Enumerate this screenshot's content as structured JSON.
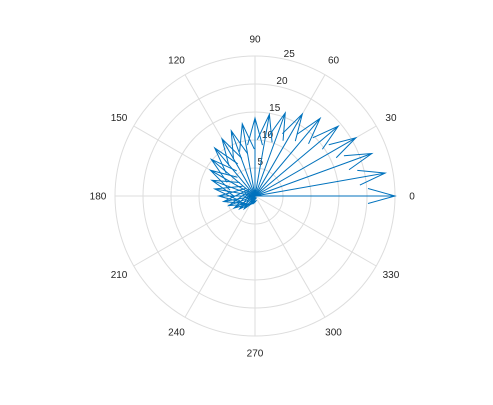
{
  "chart_data": {
    "type": "compass",
    "title": "",
    "r_lim": [
      0,
      25
    ],
    "r_ticks": [
      {
        "value": 5,
        "label": "5"
      },
      {
        "value": 10,
        "label": "10"
      },
      {
        "value": 15,
        "label": "15"
      },
      {
        "value": 20,
        "label": "20"
      },
      {
        "value": 25,
        "label": "25"
      }
    ],
    "theta_ticks": [
      {
        "deg": 0,
        "label": "0"
      },
      {
        "deg": 30,
        "label": "30"
      },
      {
        "deg": 60,
        "label": "60"
      },
      {
        "deg": 90,
        "label": "90"
      },
      {
        "deg": 120,
        "label": "120"
      },
      {
        "deg": 150,
        "label": "150"
      },
      {
        "deg": 180,
        "label": "180"
      },
      {
        "deg": 210,
        "label": "210"
      },
      {
        "deg": 240,
        "label": "240"
      },
      {
        "deg": 270,
        "label": "270"
      },
      {
        "deg": 300,
        "label": "300"
      },
      {
        "deg": 330,
        "label": "330"
      }
    ],
    "grid": true,
    "color": "#0072bd",
    "grid_color": "#dddddd",
    "vectors": [
      {
        "theta": 0,
        "r": 25.0
      },
      {
        "theta": 10,
        "r": 23.6
      },
      {
        "theta": 20,
        "r": 22.2
      },
      {
        "theta": 30,
        "r": 20.8
      },
      {
        "theta": 40,
        "r": 19.4
      },
      {
        "theta": 50,
        "r": 18.1
      },
      {
        "theta": 60,
        "r": 16.9
      },
      {
        "theta": 70,
        "r": 15.8
      },
      {
        "theta": 80,
        "r": 14.8
      },
      {
        "theta": 90,
        "r": 13.9
      },
      {
        "theta": 100,
        "r": 13.1
      },
      {
        "theta": 110,
        "r": 12.4
      },
      {
        "theta": 120,
        "r": 11.8
      },
      {
        "theta": 130,
        "r": 11.2
      },
      {
        "theta": 140,
        "r": 10.2
      },
      {
        "theta": 150,
        "r": 9.2
      },
      {
        "theta": 160,
        "r": 8.2
      },
      {
        "theta": 170,
        "r": 7.3
      },
      {
        "theta": 180,
        "r": 6.5
      },
      {
        "theta": 190,
        "r": 5.7
      },
      {
        "theta": 200,
        "r": 5.0
      },
      {
        "theta": 210,
        "r": 4.3
      },
      {
        "theta": 220,
        "r": 3.6
      },
      {
        "theta": 230,
        "r": 3.0
      },
      {
        "theta": 240,
        "r": 1.6
      },
      {
        "theta": 250,
        "r": 1.2
      },
      {
        "theta": 260,
        "r": 1.0
      }
    ]
  }
}
